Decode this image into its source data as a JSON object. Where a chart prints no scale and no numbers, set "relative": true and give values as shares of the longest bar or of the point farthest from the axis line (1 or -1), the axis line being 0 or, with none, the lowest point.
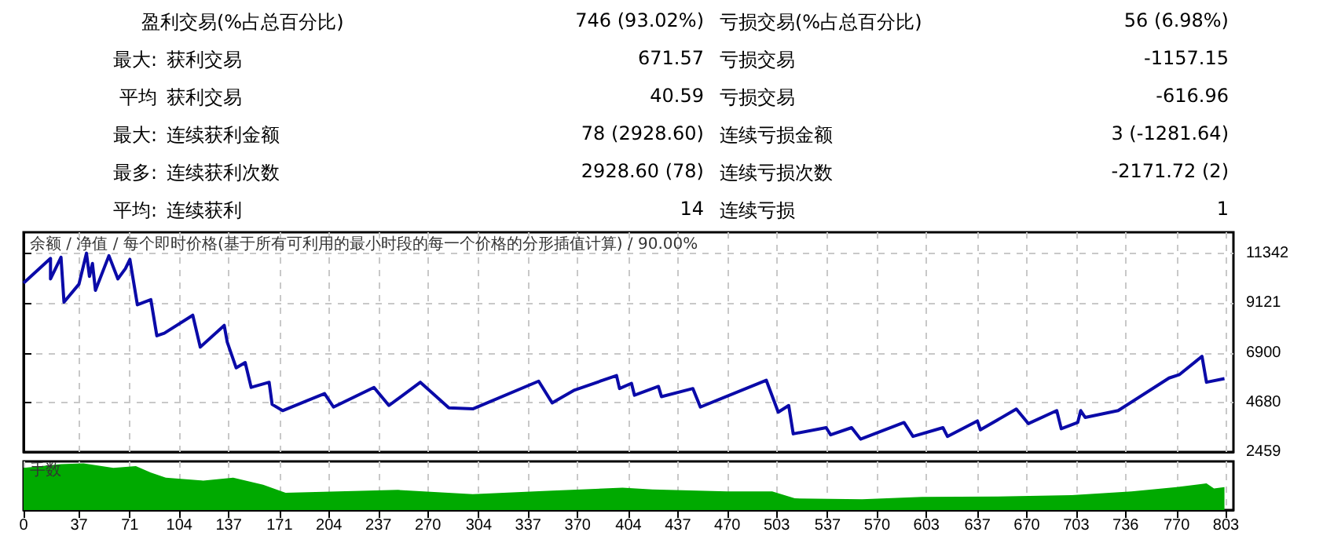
{
  "chart_data": [
    {
      "type": "line",
      "title": "余额 / 净值 / 每个即时价格(基于所有可利用的最小时段的每一个价格的分形插值计算) / 90.00%",
      "annotations": [
        "盈利交易(%占总百分比)",
        "746 (93.02%)",
        "亏损交易(%占总百分比)",
        "56 (6.98%)",
        "最大:",
        "获利交易",
        "671.57",
        "亏损交易",
        "-1157.15",
        "平均",
        "获利交易",
        "40.59",
        "亏损交易",
        "-616.96",
        "最大:",
        "连续获利金额",
        "78 (2928.60)",
        "连续亏损金额",
        "3 (-1281.64)",
        "最多:",
        "连续获利次数",
        "2928.60 (78)",
        "连续亏损次数",
        "-2171.72 (2)",
        "平均:",
        "连续获利",
        "14",
        "连续亏损",
        "1"
      ],
      "x": [
        0,
        18,
        18,
        25,
        27,
        37,
        42,
        44,
        46,
        48,
        57,
        63,
        68,
        71,
        76,
        85,
        89,
        94,
        113,
        118,
        134,
        136,
        142,
        148,
        152,
        164,
        166,
        173,
        201,
        207,
        234,
        244,
        265,
        284,
        300,
        344,
        353,
        368,
        396,
        398,
        406,
        408,
        424,
        426,
        447,
        452,
        496,
        504,
        511,
        514,
        536,
        539,
        553,
        559,
        588,
        594,
        614,
        617,
        637,
        639,
        663,
        671,
        690,
        693,
        704,
        706,
        709,
        731,
        765,
        772,
        787,
        790,
        802
      ],
      "values": [
        10023,
        11130,
        10211,
        11182,
        9170,
        9975,
        11363,
        10322,
        10905,
        9697,
        11250,
        10211,
        10669,
        11086,
        9052,
        9281,
        7664,
        7780,
        8585,
        7155,
        8129,
        7387,
        6227,
        6463,
        5352,
        5581,
        4589,
        4312,
        5075,
        4471,
        5352,
        4541,
        5582,
        4437,
        4388,
        5631,
        4659,
        5235,
        5881,
        5300,
        5535,
        5002,
        5394,
        4939,
        5300,
        4471,
        5673,
        4242,
        4541,
        3271,
        3548,
        3225,
        3548,
        3035,
        3779,
        3155,
        3548,
        3155,
        3849,
        3452,
        4381,
        3730,
        4312,
        3500,
        3779,
        4312,
        4006,
        4312,
        5771,
        5928,
        6741,
        5582,
        5743
      ],
      "color": "#0a0aa8",
      "xlim": [
        0,
        808
      ],
      "ylim": [
        2459,
        12300
      ],
      "yticks": [
        2459,
        4680,
        6900,
        9121,
        11342
      ],
      "xticks": [
        0,
        37,
        71,
        104,
        137,
        171,
        204,
        237,
        270,
        304,
        337,
        370,
        404,
        437,
        470,
        503,
        537,
        570,
        603,
        637,
        670,
        703,
        736,
        770,
        803
      ],
      "grid": true,
      "tick_labels": "y"
    },
    {
      "type": "area",
      "title": "手数",
      "relative": true,
      "color": "#00aa00",
      "x": [
        0,
        25,
        40,
        60,
        75,
        85,
        95,
        120,
        140,
        160,
        175,
        200,
        250,
        300,
        350,
        400,
        420,
        470,
        500,
        515,
        560,
        600,
        650,
        700,
        740,
        770,
        790,
        795,
        802
      ],
      "values": [
        0.9,
        0.98,
        1,
        0.9,
        0.94,
        0.8,
        0.69,
        0.63,
        0.69,
        0.54,
        0.37,
        0.39,
        0.43,
        0.34,
        0.41,
        0.48,
        0.44,
        0.4,
        0.4,
        0.25,
        0.23,
        0.28,
        0.29,
        0.32,
        0.4,
        0.49,
        0.57,
        0.46,
        0.49
      ],
      "xlim": [
        0,
        808
      ],
      "xticks": [
        0,
        37,
        71,
        104,
        137,
        171,
        204,
        237,
        270,
        304,
        337,
        370,
        404,
        437,
        470,
        503,
        537,
        570,
        603,
        637,
        670,
        703,
        736,
        770,
        803
      ],
      "grid": "x",
      "tick_labels": "x"
    }
  ]
}
